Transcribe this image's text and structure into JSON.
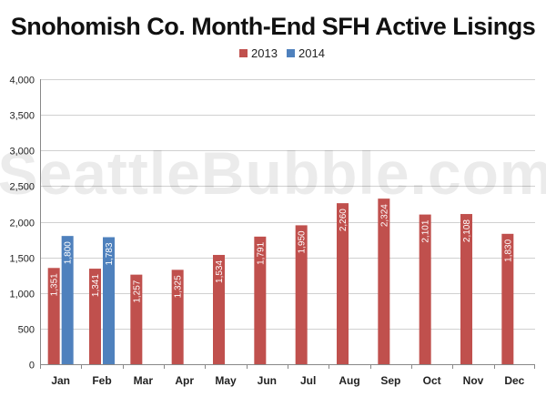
{
  "chart_data": {
    "type": "bar",
    "title": "Snohomish Co. Month-End SFH Active Lisings",
    "watermark": "SeattleBubble.com",
    "categories": [
      "Jan",
      "Feb",
      "Mar",
      "Apr",
      "May",
      "Jun",
      "Jul",
      "Aug",
      "Sep",
      "Oct",
      "Nov",
      "Dec"
    ],
    "series": [
      {
        "name": "2013",
        "color": "#c0504d",
        "values": [
          1351,
          1341,
          1257,
          1325,
          1534,
          1791,
          1950,
          2260,
          2324,
          2101,
          2108,
          1830
        ]
      },
      {
        "name": "2014",
        "color": "#4f81bd",
        "values": [
          1800,
          1783,
          null,
          null,
          null,
          null,
          null,
          null,
          null,
          null,
          null,
          null
        ]
      }
    ],
    "ylim": [
      0,
      4000
    ],
    "yticks": [
      "0",
      "500",
      "1,000",
      "1,500",
      "2,000",
      "2,500",
      "3,000",
      "3,500",
      "4,000"
    ],
    "ytick_values": [
      0,
      500,
      1000,
      1500,
      2000,
      2500,
      3000,
      3500,
      4000
    ],
    "grid": true,
    "legend_position": "top"
  }
}
